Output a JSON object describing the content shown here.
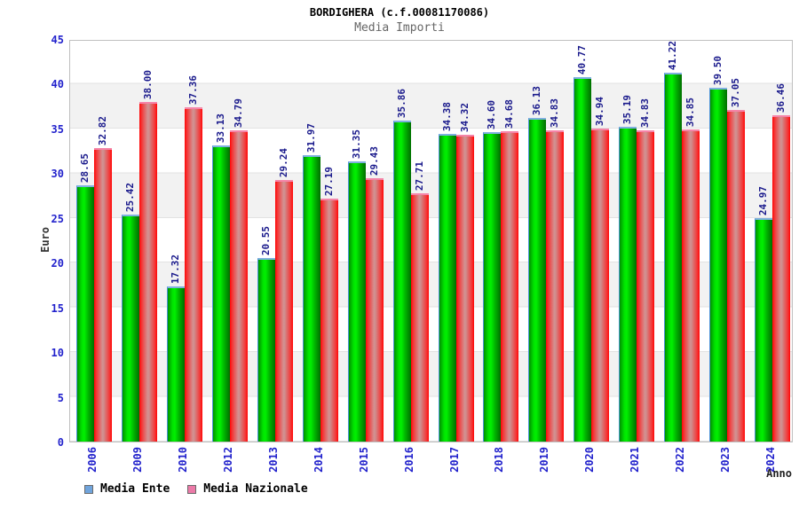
{
  "title": "BORDIGHERA (c.f.00081170086)",
  "subtitle": "Media Importi",
  "chart_data": {
    "type": "bar",
    "title": "BORDIGHERA (c.f.00081170086)",
    "subtitle": "Media Importi",
    "xlabel": "Anno",
    "ylabel": "Euro",
    "ylim": [
      0,
      45
    ],
    "yticks": [
      0,
      5,
      10,
      15,
      20,
      25,
      30,
      35,
      40,
      45
    ],
    "grid": "horizontal gridlines every 5 with alternating white/gray bands",
    "legend_position": "bottom-left",
    "value_labels": "rotated 90deg above each bar",
    "categories": [
      "2006",
      "2009",
      "2010",
      "2012",
      "2013",
      "2014",
      "2015",
      "2016",
      "2017",
      "2018",
      "2019",
      "2020",
      "2021",
      "2022",
      "2023",
      "2024"
    ],
    "series": [
      {
        "name": "Media Ente",
        "legend_color": "#70a4dc",
        "bar_color": "#00cc00",
        "values": [
          "28.65",
          "25.42",
          "17.32",
          "33.13",
          "20.55",
          "31.97",
          "31.35",
          "35.86",
          "34.38",
          "34.60",
          "36.13",
          "40.77",
          "35.19",
          "41.22",
          "39.50",
          "24.97"
        ]
      },
      {
        "name": "Media Nazionale",
        "legend_color": "#ec7aa8",
        "bar_color": "#ff0000",
        "values": [
          "32.82",
          "38.00",
          "37.36",
          "34.79",
          "29.24",
          "27.19",
          "29.43",
          "27.71",
          "34.32",
          "34.68",
          "34.83",
          "34.94",
          "34.83",
          "34.85",
          "37.05",
          "36.46"
        ]
      }
    ]
  },
  "colors": {
    "value_label": "#1a1a8c",
    "axis_text": "#2222cc",
    "subtitle_text": "#666666",
    "band_gray": "#f2f2f2"
  }
}
